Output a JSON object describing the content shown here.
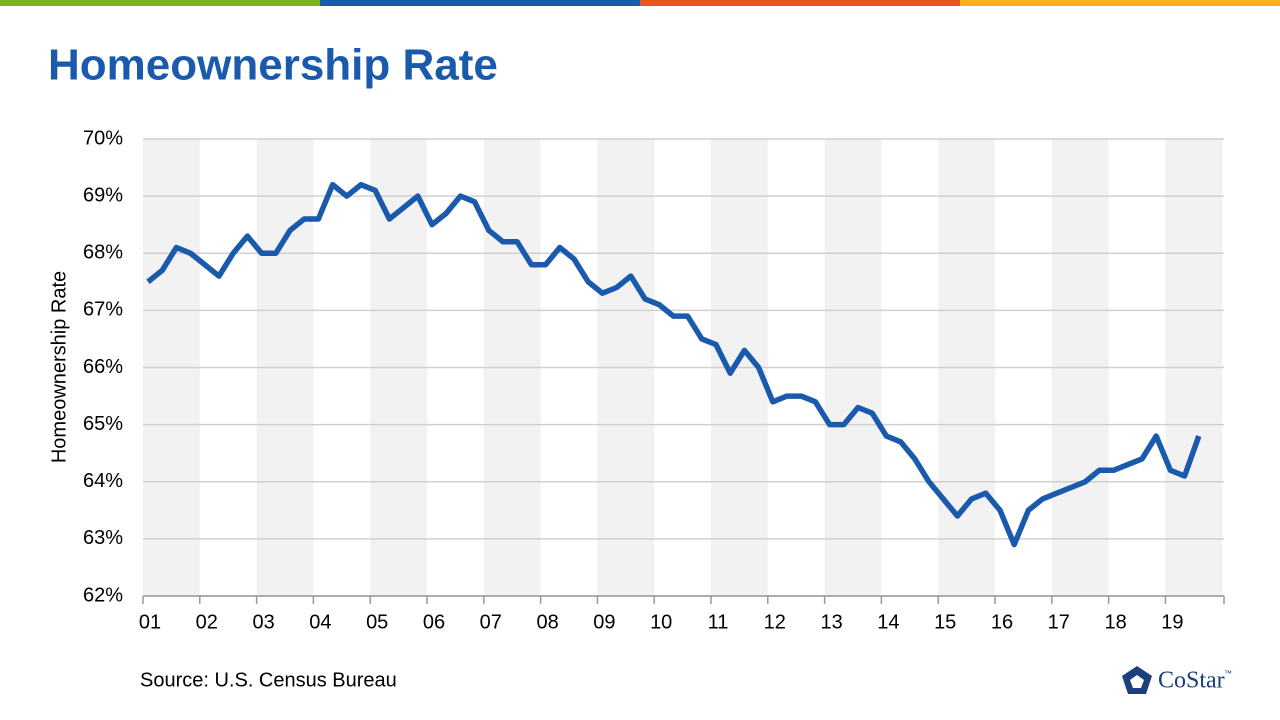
{
  "chart_data": {
    "type": "line",
    "title": "Homeownership Rate",
    "y_label": "Homeownership Rate",
    "source": "Source:  U.S. Census Bureau",
    "logo_text": "CoStar",
    "logo_mark": "™",
    "categories": [
      "01",
      null,
      null,
      null,
      "02",
      null,
      null,
      null,
      "03",
      null,
      null,
      null,
      "04",
      null,
      null,
      null,
      "05",
      null,
      null,
      null,
      "06",
      null,
      null,
      null,
      "07",
      null,
      null,
      null,
      "08",
      null,
      null,
      null,
      "09",
      null,
      null,
      null,
      "10",
      null,
      null,
      null,
      "11",
      null,
      null,
      null,
      "12",
      null,
      null,
      null,
      "13",
      null,
      null,
      null,
      "14",
      null,
      null,
      null,
      "15",
      null,
      null,
      null,
      "16",
      null,
      null,
      null,
      "17",
      null,
      null,
      null,
      "18",
      null,
      null,
      null,
      "19",
      null,
      null
    ],
    "series": [
      {
        "name": "Homeownership Rate",
        "color": "#1a5aad",
        "values": [
          67.5,
          67.7,
          68.1,
          68.0,
          67.8,
          67.6,
          68.0,
          68.3,
          68.0,
          68.0,
          68.4,
          68.6,
          68.6,
          69.2,
          69.0,
          69.2,
          69.1,
          68.6,
          68.8,
          69.0,
          68.5,
          68.7,
          69.0,
          68.9,
          68.4,
          68.2,
          68.2,
          67.8,
          67.8,
          68.1,
          67.9,
          67.5,
          67.3,
          67.4,
          67.6,
          67.2,
          67.1,
          66.9,
          66.9,
          66.5,
          66.4,
          65.9,
          66.3,
          66.0,
          65.4,
          65.5,
          65.5,
          65.4,
          65.0,
          65.0,
          65.3,
          65.2,
          64.8,
          64.7,
          64.4,
          64.0,
          63.7,
          63.4,
          63.7,
          63.8,
          63.5,
          62.9,
          63.5,
          63.7,
          63.8,
          63.9,
          64.0,
          64.2,
          64.2,
          64.3,
          64.4,
          64.8,
          64.2,
          64.1,
          64.8
        ]
      }
    ],
    "ylim": [
      62,
      70
    ],
    "yticks": [
      {
        "value": 62,
        "label": "62%"
      },
      {
        "value": 63,
        "label": "63%"
      },
      {
        "value": 64,
        "label": "64%"
      },
      {
        "value": 65,
        "label": "65%"
      },
      {
        "value": 66,
        "label": "66%"
      },
      {
        "value": 67,
        "label": "67%"
      },
      {
        "value": 68,
        "label": "68%"
      },
      {
        "value": 69,
        "label": "69%"
      },
      {
        "value": 70,
        "label": "70%"
      }
    ],
    "grid": true
  }
}
